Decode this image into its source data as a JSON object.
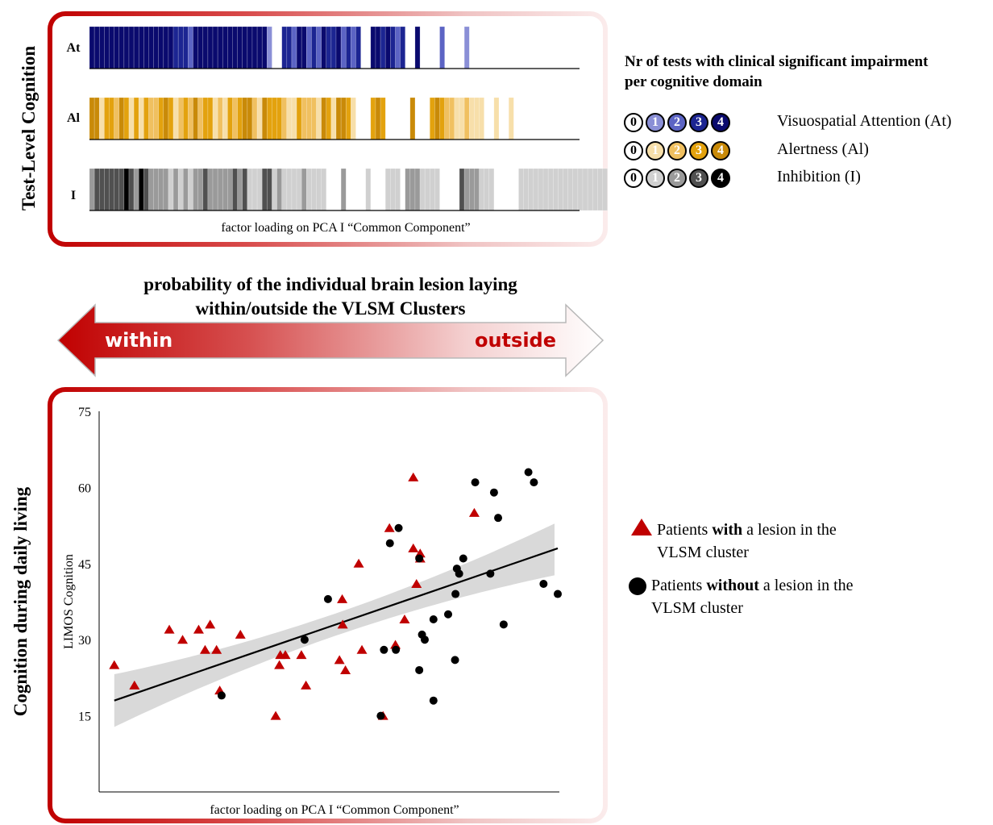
{
  "top_panel": {
    "side_label": "Test-Level Cognition",
    "row_labels": [
      "At",
      "Al",
      "I"
    ],
    "x_label": "factor loading on PCA I “Common Component”"
  },
  "domain_legend": {
    "title_line1": "Nr of tests with clinical significant impairment",
    "title_line2": "per cognitive domain",
    "numbers": [
      "0",
      "1",
      "2",
      "3",
      "4"
    ],
    "rows": [
      {
        "name": "Visuospatial Attention (At)",
        "colors": [
          "#ffffff",
          "#8a8fd6",
          "#5c64c4",
          "#1c2592",
          "#0a0a6e"
        ]
      },
      {
        "name": "Alertness (Al)",
        "colors": [
          "#ffffff",
          "#f7dfaa",
          "#f0c060",
          "#e3a20e",
          "#c98a08"
        ]
      },
      {
        "name": "Inhibition (I)",
        "colors": [
          "#ffffff",
          "#d0d0d0",
          "#9a9a9a",
          "#505050",
          "#000000"
        ]
      }
    ]
  },
  "arrow": {
    "title_line1": "probability of the individual brain lesion laying",
    "title_line2": "within/outside the VLSM Clusters",
    "left_label": "within",
    "right_label": "outside",
    "colors": {
      "left": "#c00000",
      "right": "#ffffff"
    }
  },
  "bottom_panel": {
    "side_label": "Cognition during daily living"
  },
  "point_legend": {
    "with_pre": "Patients ",
    "with_bold": "with",
    "with_post": " a lesion in the",
    "with_line2": "VLSM cluster",
    "without_pre": "Patients ",
    "without_bold": "without",
    "without_post": " a lesion in the",
    "without_line2": "VLSM cluster"
  },
  "chart_data": [
    {
      "type": "heatmap",
      "rows": [
        "At",
        "Al",
        "I"
      ],
      "x_label": "factor loading on PCA I “Common Component”",
      "values": {
        "At": [
          4,
          4,
          4,
          4,
          4,
          4,
          4,
          4,
          4,
          4,
          4,
          4,
          4,
          4,
          4,
          4,
          4,
          3,
          3,
          3,
          2,
          4,
          4,
          4,
          4,
          4,
          4,
          4,
          4,
          4,
          4,
          4,
          4,
          4,
          4,
          4,
          1,
          0,
          0,
          3,
          3,
          2,
          4,
          4,
          2,
          3,
          2,
          4,
          3,
          3,
          4,
          2,
          3,
          2,
          3,
          0,
          0,
          4,
          4,
          3,
          4,
          3,
          2,
          3,
          0,
          0,
          4,
          0,
          0,
          0,
          0,
          2,
          0,
          0,
          0,
          0,
          1,
          0,
          0,
          0,
          0,
          0,
          0,
          0,
          0,
          0,
          0,
          0,
          0,
          0,
          0,
          0,
          0,
          0,
          0,
          0,
          0,
          0,
          0,
          0,
          0,
          0,
          0,
          0,
          0,
          0
        ],
        "Al": [
          4,
          4,
          1,
          3,
          3,
          2,
          4,
          3,
          1,
          3,
          1,
          3,
          2,
          2,
          3,
          4,
          3,
          1,
          2,
          3,
          2,
          4,
          2,
          3,
          3,
          1,
          2,
          1,
          3,
          2,
          3,
          4,
          4,
          2,
          1,
          4,
          3,
          3,
          3,
          2,
          1,
          1,
          3,
          2,
          2,
          2,
          1,
          4,
          3,
          1,
          4,
          4,
          3,
          1,
          0,
          0,
          0,
          3,
          4,
          3,
          0,
          0,
          0,
          0,
          0,
          4,
          0,
          0,
          0,
          3,
          4,
          3,
          2,
          2,
          1,
          1,
          2,
          1,
          1,
          1,
          0,
          0,
          1,
          0,
          0,
          1,
          0,
          0,
          0,
          0,
          0,
          0,
          0,
          0,
          0,
          0,
          0,
          0,
          0,
          0,
          0,
          0,
          0,
          0,
          0,
          0
        ],
        "I": [
          2,
          3,
          3,
          3,
          3,
          3,
          3,
          4,
          3,
          2,
          4,
          3,
          2,
          2,
          2,
          2,
          1,
          2,
          1,
          2,
          1,
          2,
          2,
          3,
          2,
          2,
          2,
          2,
          2,
          3,
          2,
          3,
          1,
          1,
          1,
          3,
          3,
          1,
          2,
          1,
          1,
          1,
          1,
          2,
          1,
          1,
          1,
          1,
          0,
          0,
          0,
          2,
          0,
          0,
          0,
          0,
          1,
          0,
          0,
          0,
          1,
          1,
          1,
          0,
          2,
          2,
          2,
          1,
          1,
          1,
          1,
          0,
          0,
          0,
          0,
          3,
          2,
          2,
          2,
          1,
          1,
          1,
          0,
          0,
          0,
          0,
          0,
          1,
          1,
          1,
          1,
          1,
          1,
          1,
          1,
          1,
          1,
          1,
          1,
          1,
          1,
          1,
          1,
          1,
          1,
          0
        ]
      }
    },
    {
      "type": "scatter",
      "ylabel": "LIMOS Cognition",
      "xlabel": "factor loading on PCA I “Common Component”",
      "ylim": [
        0,
        75
      ],
      "xlim": [
        0,
        100
      ],
      "yticks": [
        15,
        30,
        45,
        60,
        75
      ],
      "series": [
        {
          "name": "Patients with a lesion in the VLSM cluster",
          "marker": "triangle",
          "color": "#c00000",
          "points": [
            [
              3.3,
              25
            ],
            [
              7.7,
              21
            ],
            [
              15.3,
              32
            ],
            [
              18.2,
              30
            ],
            [
              21.7,
              32
            ],
            [
              24.2,
              33
            ],
            [
              23.1,
              28
            ],
            [
              25.6,
              28
            ],
            [
              26.3,
              20
            ],
            [
              30.8,
              31
            ],
            [
              38.5,
              15
            ],
            [
              39.5,
              27
            ],
            [
              39.3,
              25
            ],
            [
              40.6,
              27
            ],
            [
              44.1,
              27
            ],
            [
              45.1,
              21
            ],
            [
              52.4,
              26
            ],
            [
              53.0,
              38
            ],
            [
              53.1,
              33
            ],
            [
              53.7,
              24
            ],
            [
              56.6,
              45
            ],
            [
              57.3,
              28
            ],
            [
              61.9,
              15
            ],
            [
              63.3,
              52
            ],
            [
              64.6,
              29
            ],
            [
              66.6,
              34
            ],
            [
              68.5,
              62
            ],
            [
              68.5,
              48
            ],
            [
              69.2,
              41
            ],
            [
              70.0,
              46
            ],
            [
              70.0,
              47
            ],
            [
              81.8,
              55
            ]
          ],
          "regression": {
            "x": [
              3.3,
              100
            ],
            "y": [
              18,
              48
            ]
          }
        },
        {
          "name": "Patients without a lesion in the VLSM cluster",
          "marker": "circle",
          "color": "#000000",
          "points": [
            [
              26.7,
              19
            ],
            [
              44.8,
              30
            ],
            [
              49.9,
              38
            ],
            [
              61.4,
              15
            ],
            [
              62.1,
              28
            ],
            [
              63.4,
              49
            ],
            [
              64.7,
              28
            ],
            [
              65.3,
              52
            ],
            [
              69.8,
              24
            ],
            [
              69.8,
              46
            ],
            [
              70.4,
              31
            ],
            [
              71.0,
              30
            ],
            [
              72.9,
              18
            ],
            [
              72.9,
              34
            ],
            [
              76.1,
              35
            ],
            [
              77.6,
              26
            ],
            [
              77.7,
              39
            ],
            [
              78.0,
              44
            ],
            [
              78.5,
              43
            ],
            [
              79.4,
              46
            ],
            [
              82.0,
              61
            ],
            [
              85.3,
              43
            ],
            [
              86.1,
              59
            ],
            [
              87.0,
              54
            ],
            [
              88.2,
              33
            ],
            [
              93.6,
              63
            ],
            [
              94.8,
              61
            ],
            [
              96.9,
              41
            ],
            [
              100,
              39
            ]
          ]
        }
      ]
    }
  ]
}
